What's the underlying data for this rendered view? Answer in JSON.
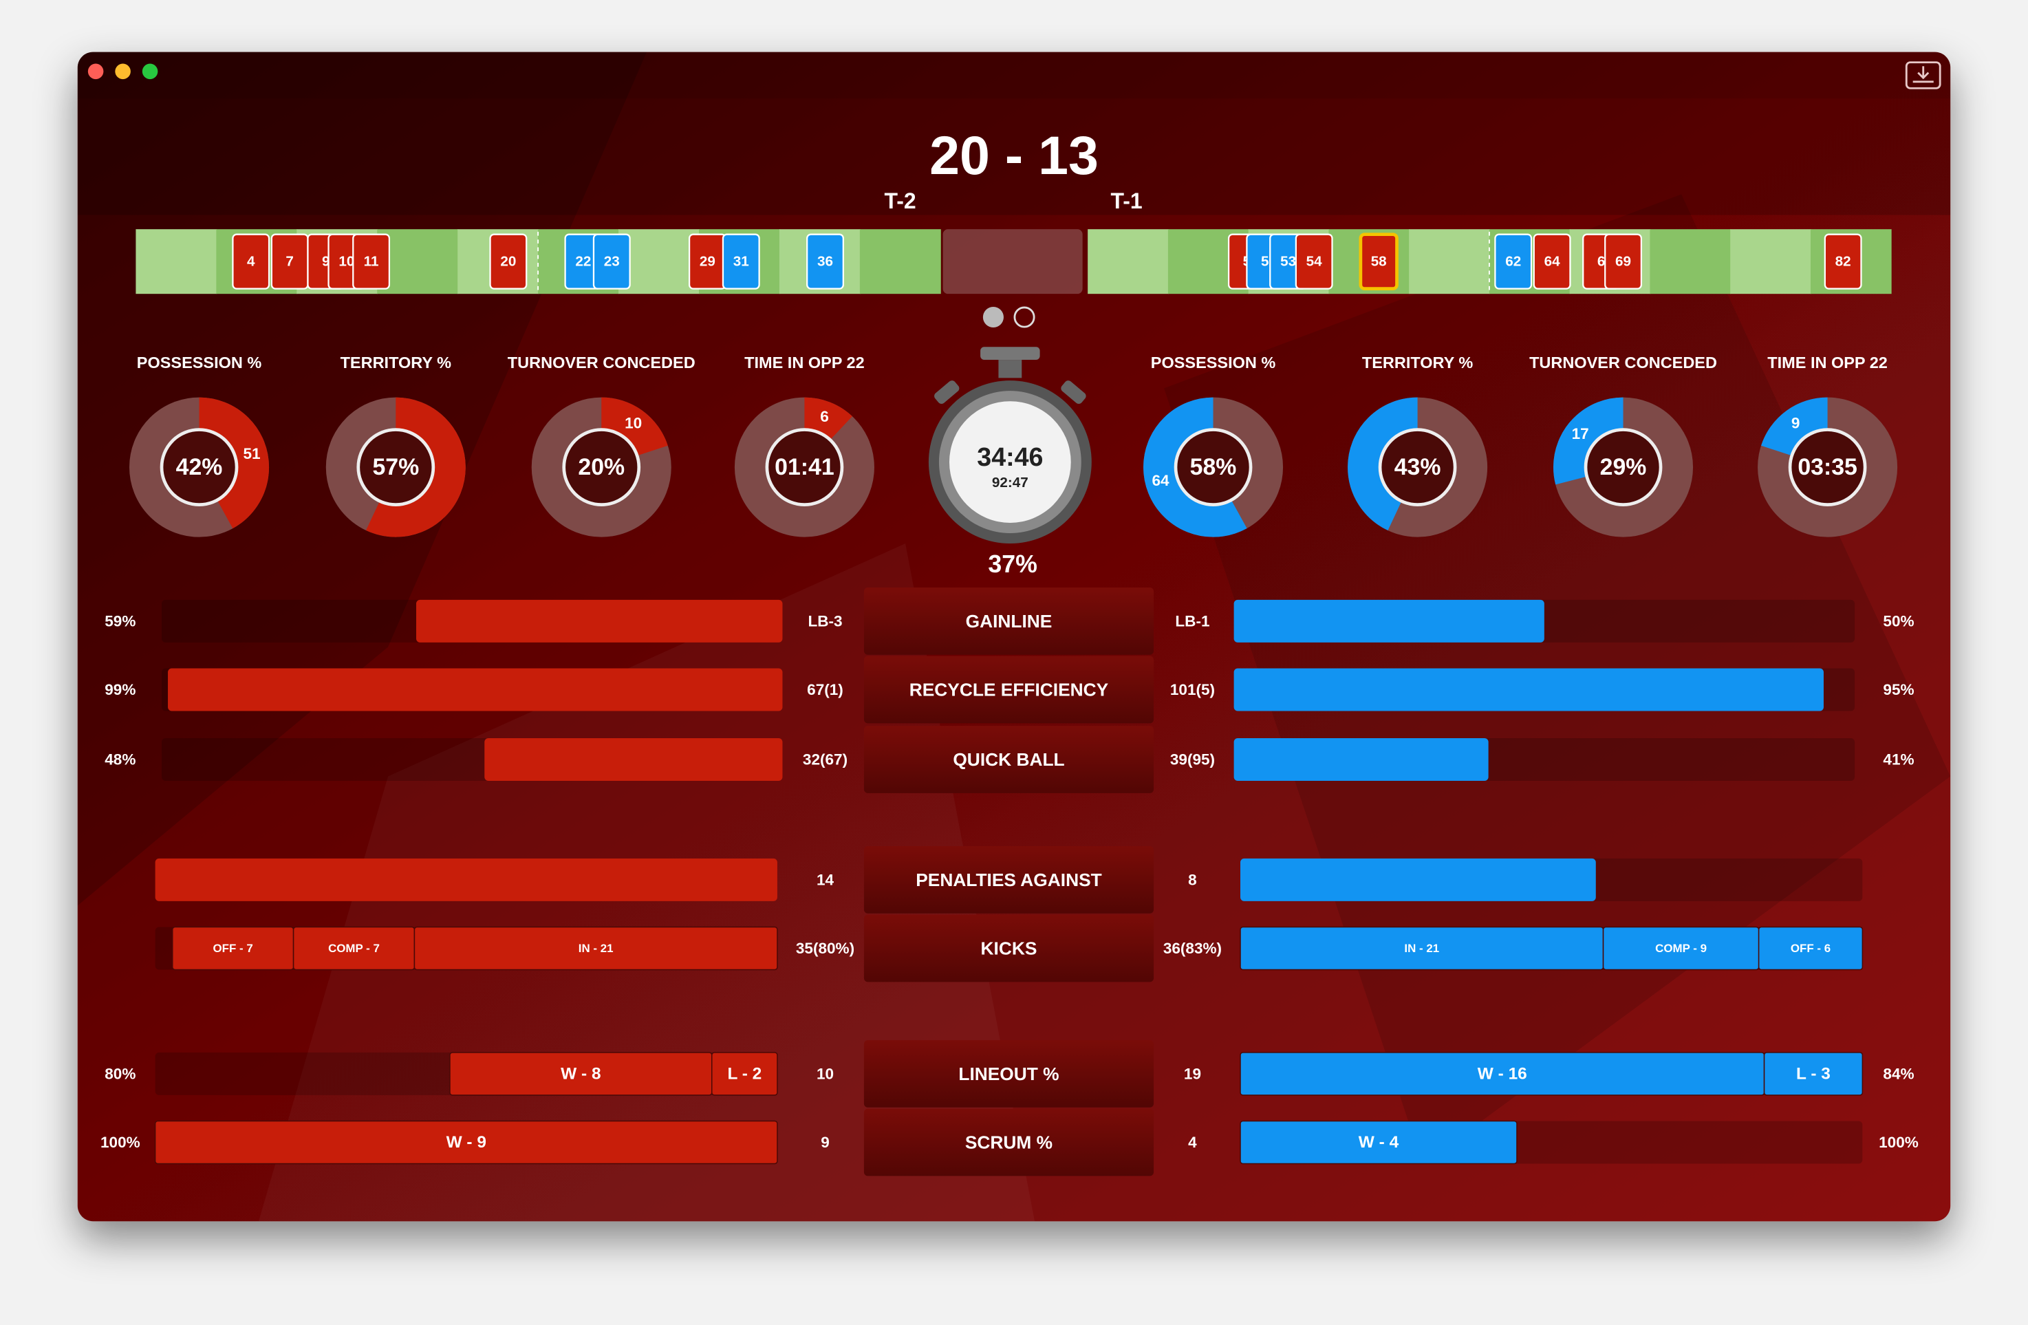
{
  "score": "20 - 13",
  "teams": [
    "T-2",
    "T-1"
  ],
  "colors": {
    "left": "#c81e0a",
    "right": "#1294f2"
  },
  "timeline": {
    "left": [
      {
        "label": "4",
        "color": "#c81e0a"
      },
      {
        "label": "7",
        "color": "#c81e0a"
      },
      {
        "label": "9",
        "color": "#c81e0a"
      },
      {
        "label": "10",
        "color": "#c81e0a"
      },
      {
        "label": "11",
        "color": "#c81e0a"
      },
      {
        "label": "20",
        "color": "#c81e0a"
      },
      {
        "label": "22",
        "color": "#1294f2"
      },
      {
        "label": "23",
        "color": "#1294f2"
      },
      {
        "label": "29",
        "color": "#c81e0a"
      },
      {
        "label": "31",
        "color": "#1294f2"
      },
      {
        "label": "36",
        "color": "#1294f2"
      }
    ],
    "right": [
      {
        "label": "5",
        "color": "#c81e0a"
      },
      {
        "label": "5",
        "color": "#1294f2"
      },
      {
        "label": "53",
        "color": "#1294f2"
      },
      {
        "label": "54",
        "color": "#c81e0a"
      },
      {
        "label": "58",
        "color": "#c81e0a",
        "highlight": true
      },
      {
        "label": "62",
        "color": "#1294f2"
      },
      {
        "label": "64",
        "color": "#c81e0a"
      },
      {
        "label": "6",
        "color": "#c81e0a"
      },
      {
        "label": "69",
        "color": "#c81e0a"
      },
      {
        "label": "82",
        "color": "#c81e0a"
      }
    ]
  },
  "donuts": {
    "left": [
      {
        "title": "POSSESSION %",
        "center": "42%",
        "arc": 42,
        "badge": "51"
      },
      {
        "title": "TERRITORY %",
        "center": "57%",
        "arc": 57
      },
      {
        "title": "TURNOVER CONCEDED",
        "center": "20%",
        "arc": 20,
        "badge": "10"
      },
      {
        "title": "TIME IN OPP 22",
        "center": "01:41",
        "arc": 12,
        "badge": "6"
      }
    ],
    "right": [
      {
        "title": "POSSESSION %",
        "center": "58%",
        "arc": 58,
        "badge": "64"
      },
      {
        "title": "TERRITORY %",
        "center": "43%",
        "arc": 43
      },
      {
        "title": "TURNOVER CONCEDED",
        "center": "29%",
        "arc": 29,
        "badge": "17"
      },
      {
        "title": "TIME IN OPP 22",
        "center": "03:35",
        "arc": 20,
        "badge": "9"
      }
    ]
  },
  "clock": {
    "main": "34:46",
    "sub": "92:47",
    "percent": "37%"
  },
  "rows": [
    {
      "name": "GAINLINE",
      "left": {
        "pct": {
          "value": 59,
          "label": "59%"
        },
        "note": "LB-3"
      },
      "right": {
        "pct": {
          "value": 50,
          "label": "50%"
        },
        "note": "LB-1"
      }
    },
    {
      "name": "RECYCLE EFFICIENCY",
      "left": {
        "pct": {
          "value": 99,
          "label": "99%"
        },
        "note": "67(1)"
      },
      "right": {
        "pct": {
          "value": 95,
          "label": "95%"
        },
        "note": "101(5)"
      }
    },
    {
      "name": "QUICK BALL",
      "left": {
        "pct": {
          "value": 48,
          "label": "48%"
        },
        "note": "32(67)"
      },
      "right": {
        "pct": {
          "value": 41,
          "label": "41%"
        },
        "note": "39(95)"
      }
    },
    {
      "name": "PENALTIES AGAINST",
      "left": {
        "count": 14
      },
      "right": {
        "count": 8
      }
    },
    {
      "name": "KICKS",
      "left": {
        "note": "35(80%)",
        "segments": [
          {
            "label": "OFF - 7",
            "value": 7
          },
          {
            "label": "COMP - 7",
            "value": 7
          },
          {
            "label": "IN - 21",
            "value": 21
          }
        ]
      },
      "right": {
        "note": "36(83%)",
        "segments": [
          {
            "label": "IN - 21",
            "value": 21
          },
          {
            "label": "COMP - 9",
            "value": 9
          },
          {
            "label": "OFF - 6",
            "value": 6
          }
        ]
      }
    },
    {
      "name": "LINEOUT %",
      "left": {
        "pct": {
          "value": 80,
          "label": "80%"
        },
        "count": 10,
        "segments": [
          {
            "label": "W - 8",
            "value": 8
          },
          {
            "label": "L - 2",
            "value": 2
          }
        ]
      },
      "right": {
        "pct": {
          "value": 84,
          "label": "84%"
        },
        "count": 19,
        "segments": [
          {
            "label": "W - 16",
            "value": 16
          },
          {
            "label": "L - 3",
            "value": 3
          }
        ]
      }
    },
    {
      "name": "SCRUM %",
      "left": {
        "pct": {
          "value": 100,
          "label": "100%"
        },
        "count": 9,
        "segments": [
          {
            "label": "W - 9",
            "value": 9
          }
        ]
      },
      "right": {
        "pct": {
          "value": 100,
          "label": "100%"
        },
        "count": 4,
        "segments": [
          {
            "label": "W - 4",
            "value": 4
          }
        ]
      }
    }
  ]
}
